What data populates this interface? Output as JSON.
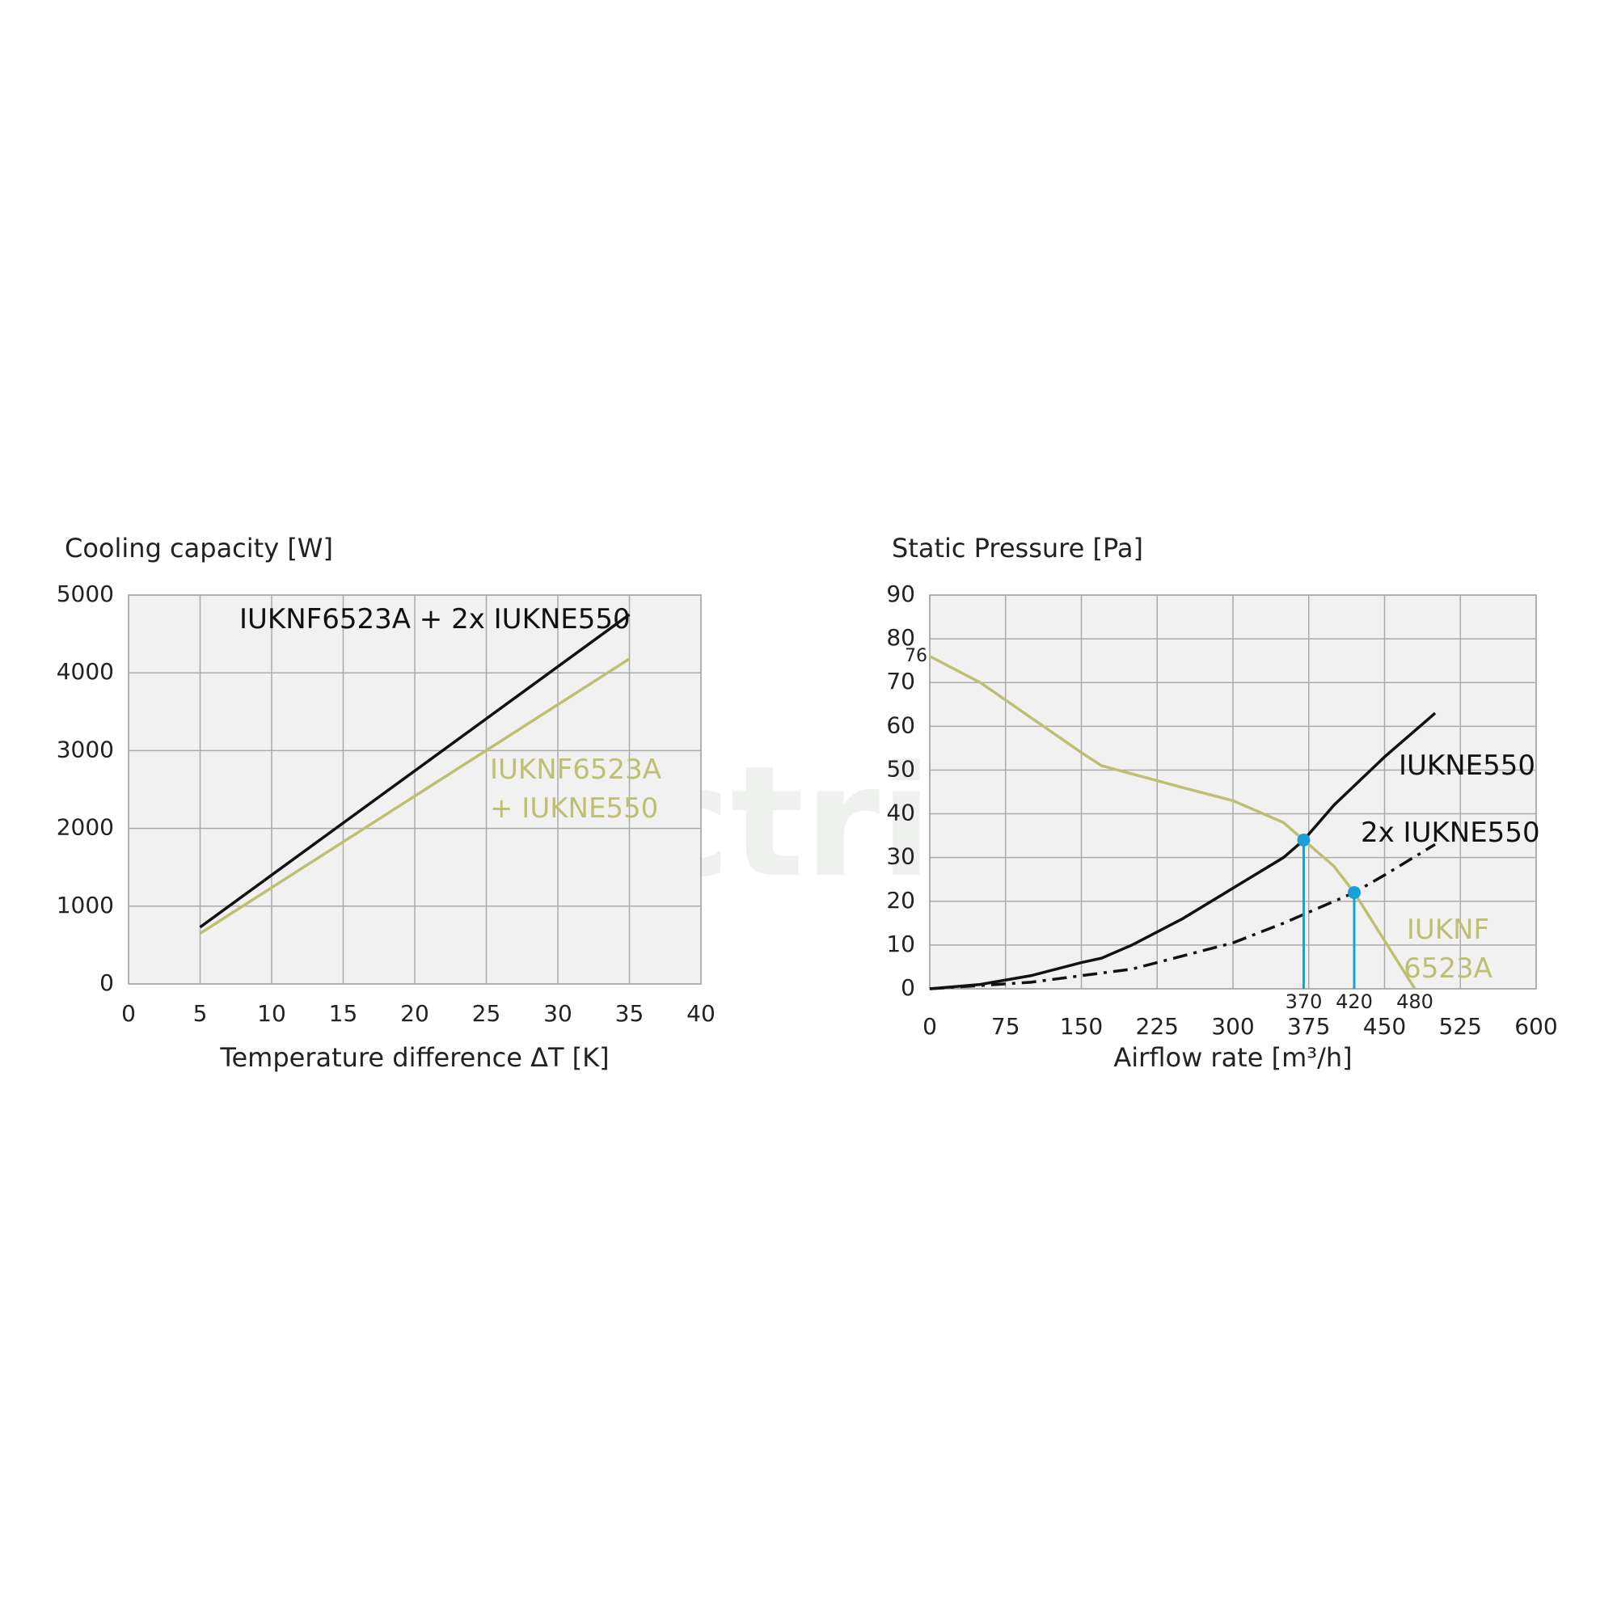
{
  "chart_data": [
    {
      "type": "line",
      "title": "Cooling capacity [W]",
      "x_label": "Temperature difference ΔT [K]",
      "xlim": [
        0,
        40
      ],
      "xticks": [
        0,
        5,
        10,
        15,
        20,
        25,
        30,
        35,
        40
      ],
      "ylim": [
        0,
        5000
      ],
      "yticks": [
        0,
        1000,
        2000,
        3000,
        4000,
        5000
      ],
      "grid": true,
      "series": [
        {
          "name": "IUKNF6523A + 2x IUKNE550",
          "color": "#111111",
          "x": [
            5,
            35
          ],
          "values": [
            730,
            4750
          ]
        },
        {
          "name": "IUKNF6523A + IUKNE550",
          "color": "#bfbf72",
          "x": [
            5,
            35
          ],
          "values": [
            650,
            4180
          ]
        }
      ]
    },
    {
      "type": "line",
      "title": "Static Pressure [Pa]",
      "x_label": "Airflow rate [m³/h]",
      "xlim": [
        0,
        600
      ],
      "xticks": [
        0,
        75,
        150,
        225,
        300,
        375,
        450,
        525,
        600
      ],
      "ylim": [
        0,
        90
      ],
      "yticks": [
        0,
        10,
        20,
        30,
        40,
        50,
        60,
        70,
        80,
        90
      ],
      "grid": true,
      "y_annotations": [
        76
      ],
      "x_annotations": [
        370,
        420,
        480
      ],
      "series": [
        {
          "name": "IUKNF 6523A",
          "color": "#bfbf72",
          "x": [
            0,
            50,
            100,
            150,
            170,
            250,
            300,
            350,
            370,
            400,
            420,
            450,
            480
          ],
          "values": [
            76,
            70,
            62,
            54,
            51,
            46,
            43,
            38,
            34,
            28,
            22,
            11,
            0
          ]
        },
        {
          "name": "IUKNE550",
          "color": "#111111",
          "x": [
            0,
            50,
            100,
            150,
            170,
            200,
            250,
            300,
            350,
            370,
            400,
            450,
            500
          ],
          "values": [
            0,
            1,
            3,
            6,
            7,
            10,
            16,
            23,
            30,
            34,
            42,
            53,
            63
          ]
        },
        {
          "name": "2x IUKNE550",
          "color": "#111111",
          "dash": "dash-dot",
          "x": [
            0,
            100,
            150,
            200,
            250,
            300,
            350,
            400,
            420,
            450,
            500
          ],
          "values": [
            0,
            1.5,
            3,
            4.5,
            7.5,
            10.5,
            15,
            20,
            22,
            26,
            33
          ]
        }
      ],
      "operating_points": {
        "color": "#1aa0d8",
        "x": [
          370,
          420
        ],
        "values": [
          34,
          22
        ]
      }
    }
  ],
  "watermark": "electricon"
}
